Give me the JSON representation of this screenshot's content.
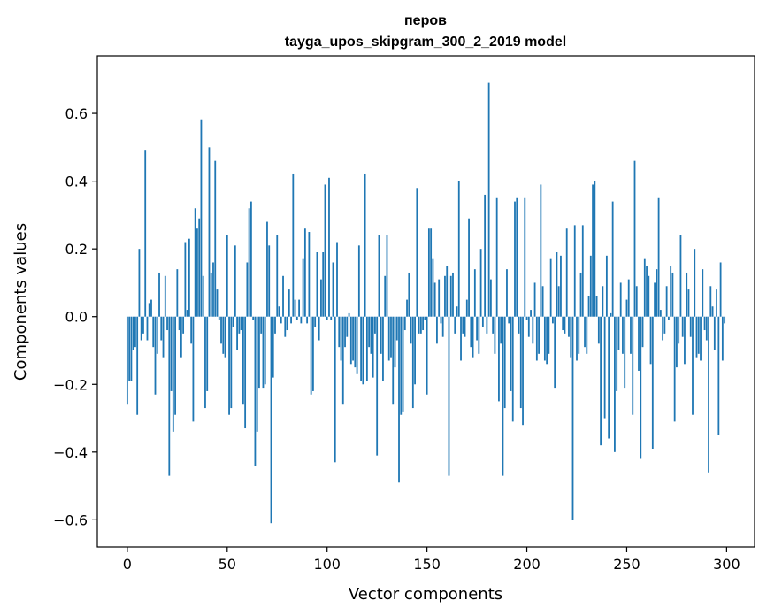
{
  "chart_data": {
    "type": "bar",
    "title": "перов",
    "subtitle": "tayga_upos_skipgram_300_2_2019 model",
    "xlabel": "Vector components",
    "ylabel": "Components values",
    "xlim": [
      -15,
      314
    ],
    "ylim": [
      -0.68,
      0.77
    ],
    "xticks": [
      0,
      50,
      100,
      150,
      200,
      250,
      300
    ],
    "yticks": [
      -0.6,
      -0.4,
      -0.2,
      0.0,
      0.2,
      0.4,
      0.6
    ],
    "ytick_labels": [
      "−0.6",
      "−0.4",
      "−0.2",
      "0.0",
      "0.2",
      "0.4",
      "0.6"
    ],
    "bar_color": "#1f77b4",
    "grid": false,
    "values": [
      -0.26,
      -0.19,
      -0.19,
      -0.1,
      -0.09,
      -0.29,
      0.2,
      -0.07,
      -0.05,
      0.49,
      -0.07,
      0.04,
      0.05,
      -0.09,
      -0.23,
      -0.11,
      0.13,
      -0.07,
      -0.12,
      0.12,
      -0.04,
      -0.47,
      -0.22,
      -0.34,
      -0.29,
      0.14,
      -0.04,
      -0.12,
      -0.05,
      0.22,
      0.02,
      0.23,
      -0.08,
      -0.31,
      0.32,
      0.26,
      0.29,
      0.58,
      0.12,
      -0.27,
      -0.22,
      0.5,
      0.13,
      0.16,
      0.46,
      0.08,
      -0.01,
      -0.08,
      -0.11,
      -0.12,
      0.24,
      -0.29,
      -0.27,
      -0.03,
      0.21,
      -0.1,
      -0.05,
      -0.04,
      -0.26,
      -0.33,
      0.16,
      0.32,
      0.34,
      -0.01,
      -0.44,
      -0.34,
      -0.21,
      -0.05,
      -0.21,
      -0.2,
      0.28,
      0.21,
      -0.61,
      -0.18,
      -0.05,
      0.24,
      0.03,
      -0.02,
      0.12,
      -0.06,
      -0.04,
      0.08,
      -0.02,
      0.42,
      0.05,
      -0.01,
      0.05,
      -0.02,
      0.17,
      0.26,
      -0.02,
      0.25,
      -0.23,
      -0.22,
      -0.03,
      0.19,
      -0.07,
      0.11,
      0.19,
      0.39,
      -0.01,
      0.41,
      -0.01,
      0.16,
      -0.43,
      0.22,
      -0.09,
      -0.13,
      -0.26,
      -0.09,
      -0.06,
      0.01,
      -0.14,
      -0.13,
      -0.15,
      -0.17,
      0.21,
      -0.19,
      -0.2,
      0.42,
      -0.19,
      -0.09,
      -0.11,
      -0.18,
      -0.05,
      -0.41,
      0.24,
      -0.11,
      -0.19,
      0.12,
      0.24,
      -0.13,
      -0.12,
      -0.26,
      -0.15,
      -0.07,
      -0.49,
      -0.29,
      -0.28,
      -0.04,
      0.05,
      0.13,
      -0.08,
      -0.27,
      -0.2,
      0.38,
      -0.05,
      -0.05,
      -0.04,
      -0.01,
      -0.23,
      0.26,
      0.26,
      0.17,
      0.1,
      -0.08,
      0.11,
      -0.02,
      -0.06,
      0.12,
      0.15,
      -0.47,
      0.12,
      0.13,
      -0.05,
      0.03,
      0.4,
      -0.13,
      -0.05,
      -0.06,
      0.05,
      0.29,
      -0.09,
      -0.12,
      0.14,
      -0.07,
      -0.11,
      0.2,
      -0.03,
      0.36,
      -0.05,
      0.69,
      0.11,
      -0.05,
      -0.11,
      0.35,
      -0.25,
      -0.08,
      -0.47,
      -0.27,
      0.14,
      -0.02,
      -0.22,
      -0.31,
      0.34,
      0.35,
      -0.05,
      -0.27,
      -0.32,
      0.35,
      -0.01,
      -0.06,
      0.02,
      -0.08,
      0.1,
      -0.13,
      -0.11,
      0.39,
      0.09,
      -0.13,
      -0.14,
      -0.11,
      0.17,
      -0.02,
      -0.21,
      0.19,
      0.09,
      0.18,
      -0.04,
      -0.05,
      0.26,
      -0.06,
      -0.12,
      -0.6,
      0.27,
      -0.13,
      -0.11,
      0.13,
      0.27,
      -0.09,
      -0.11,
      0.06,
      0.18,
      0.39,
      0.4,
      0.06,
      -0.08,
      -0.38,
      0.09,
      -0.3,
      0.18,
      -0.36,
      0.01,
      0.34,
      -0.4,
      -0.22,
      -0.1,
      0.1,
      -0.11,
      -0.21,
      0.05,
      0.11,
      -0.11,
      -0.29,
      0.46,
      0.09,
      -0.16,
      -0.42,
      -0.09,
      0.17,
      0.15,
      0.12,
      -0.14,
      -0.39,
      0.1,
      0.14,
      0.35,
      0.02,
      -0.07,
      -0.05,
      0.09,
      -0.01,
      0.15,
      0.13,
      -0.31,
      -0.15,
      -0.08,
      0.24,
      -0.06,
      -0.14,
      0.13,
      0.08,
      -0.06,
      -0.29,
      0.2,
      -0.12,
      -0.11,
      -0.13,
      0.14,
      -0.04,
      -0.07,
      -0.46,
      0.09,
      0.03,
      -0.1,
      0.08,
      -0.35,
      0.16,
      -0.13,
      -0.02
    ]
  }
}
